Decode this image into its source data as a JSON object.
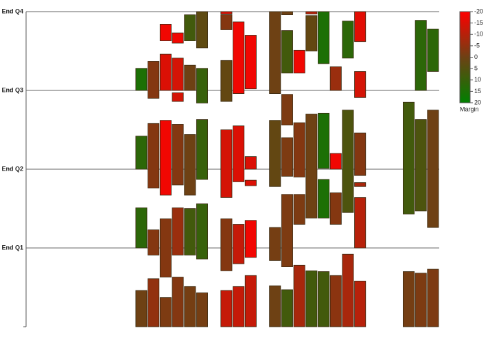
{
  "chart_data": {
    "type": "floating-bar",
    "ylim": [
      0,
      4
    ],
    "yticks": [
      {
        "value": 1,
        "label": "End Q1"
      },
      {
        "value": 2,
        "label": "End Q2"
      },
      {
        "value": 3,
        "label": "End Q3"
      },
      {
        "value": 4,
        "label": "End Q4"
      }
    ],
    "grid": true,
    "colorbar_label": "Margin",
    "margin_lim": [
      -20,
      20
    ],
    "margin_ticks": [
      -20,
      -15,
      -10,
      -5,
      0,
      5,
      10,
      15,
      20
    ],
    "colors": {
      "low": "#ff0000",
      "mid": "#6e4114",
      "high": "#008000"
    },
    "columns": [
      [],
      [],
      [],
      [],
      [],
      [],
      [],
      [],
      [],
      [
        [
          3.0,
          3.28,
          15
        ],
        [
          2.0,
          2.42,
          12
        ],
        [
          1.0,
          1.51,
          12
        ],
        [
          0,
          0.46,
          0
        ]
      ],
      [
        [
          2.9,
          3.37,
          -3
        ],
        [
          1.76,
          2.58,
          -3
        ],
        [
          0.91,
          1.23,
          -3
        ],
        [
          0,
          0.61,
          -5
        ]
      ],
      [
        [
          3.63,
          3.84,
          -18
        ],
        [
          3.0,
          3.46,
          -15
        ],
        [
          1.67,
          2.62,
          -18
        ],
        [
          0.63,
          1.37,
          -3
        ],
        [
          0,
          0.37,
          -2
        ]
      ],
      [
        [
          3.6,
          3.73,
          -18
        ],
        [
          3.0,
          3.41,
          -14
        ],
        [
          2.86,
          2.97,
          -14
        ],
        [
          1.8,
          2.57,
          -3
        ],
        [
          0.91,
          1.51,
          -6
        ],
        [
          0,
          0.63,
          -3
        ]
      ],
      [
        [
          3.63,
          3.96,
          8
        ],
        [
          3.0,
          3.32,
          0
        ],
        [
          1.67,
          2.44,
          0
        ],
        [
          0.91,
          1.5,
          8
        ],
        [
          0,
          0.51,
          -1
        ]
      ],
      [
        [
          3.54,
          4.0,
          3
        ],
        [
          2.84,
          3.28,
          10
        ],
        [
          1.87,
          2.63,
          10
        ],
        [
          0.86,
          1.56,
          10
        ],
        [
          0,
          0.43,
          -1
        ]
      ],
      [],
      [
        [
          3.97,
          4.0,
          -15
        ],
        [
          3.77,
          3.96,
          -3
        ],
        [
          2.86,
          3.38,
          2
        ],
        [
          1.64,
          2.5,
          -14
        ],
        [
          0.71,
          1.37,
          -3
        ],
        [
          0,
          0.46,
          -12
        ]
      ],
      [
        [
          2.96,
          3.87,
          -18
        ],
        [
          1.84,
          2.55,
          -15
        ],
        [
          0.8,
          1.3,
          -12
        ],
        [
          0,
          0.51,
          -12
        ]
      ],
      [
        [
          3.02,
          3.7,
          -18
        ],
        [
          2.0,
          2.16,
          -15
        ],
        [
          1.79,
          1.86,
          -15
        ],
        [
          0.88,
          1.35,
          -18
        ],
        [
          0,
          0.65,
          -12
        ]
      ],
      [],
      [
        [
          2.96,
          4.0,
          0
        ],
        [
          1.78,
          2.62,
          2
        ],
        [
          0.84,
          1.26,
          -1
        ],
        [
          0,
          0.52,
          0
        ]
      ],
      [
        [
          3.96,
          4.0,
          0
        ],
        [
          3.22,
          3.76,
          8
        ],
        [
          2.56,
          2.95,
          -2
        ],
        [
          1.91,
          2.4,
          -2
        ],
        [
          0.76,
          1.68,
          -2
        ],
        [
          0,
          0.47,
          8
        ]
      ],
      [
        [
          3.22,
          3.51,
          -18
        ],
        [
          1.9,
          2.59,
          -3
        ],
        [
          1.3,
          1.68,
          -2
        ],
        [
          0,
          0.78,
          -8
        ]
      ],
      [
        [
          3.97,
          4.0,
          -10
        ],
        [
          3.5,
          3.95,
          2
        ],
        [
          1.38,
          2.7,
          0
        ],
        [
          0,
          0.71,
          8
        ]
      ],
      [
        [
          3.34,
          4.0,
          15
        ],
        [
          2.01,
          2.71,
          15
        ],
        [
          1.38,
          1.87,
          15
        ],
        [
          0,
          0.7,
          8
        ]
      ],
      [
        [
          3.0,
          3.3,
          -6
        ],
        [
          2.0,
          2.2,
          -18
        ],
        [
          1.3,
          1.7,
          -3
        ],
        [
          0,
          0.65,
          -4
        ]
      ],
      [
        [
          3.41,
          3.88,
          12
        ],
        [
          1.45,
          2.75,
          6
        ],
        [
          0,
          0.92,
          -8
        ]
      ],
      [
        [
          3.62,
          4.0,
          -16
        ],
        [
          2.91,
          3.24,
          -14
        ],
        [
          1.92,
          2.46,
          -3
        ],
        [
          1.78,
          1.83,
          -8
        ],
        [
          1.0,
          1.64,
          -10
        ],
        [
          0,
          0.58,
          -10
        ]
      ],
      [],
      [],
      [],
      [
        [
          1.43,
          2.85,
          8
        ],
        [
          0,
          0.7,
          -1
        ]
      ],
      [
        [
          3.0,
          3.89,
          12
        ],
        [
          1.47,
          2.63,
          6
        ],
        [
          0,
          0.68,
          -2
        ]
      ],
      [
        [
          3.24,
          3.78,
          12
        ],
        [
          1.26,
          2.75,
          0
        ],
        [
          0,
          0.73,
          -2
        ]
      ]
    ]
  }
}
